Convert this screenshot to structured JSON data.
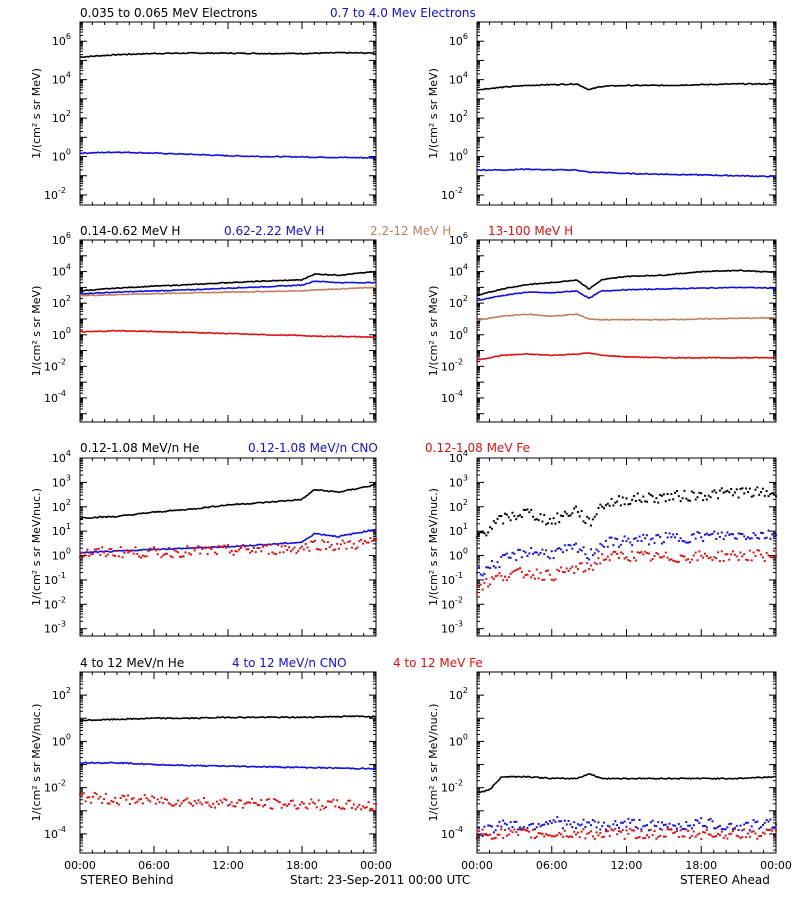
{
  "footer": {
    "left": "STEREO Behind",
    "center": "Start: 23-Sep-2011 00:00 UTC",
    "right": "STEREO Ahead"
  },
  "x_tick_labels": [
    "00:00",
    "06:00",
    "12:00",
    "18:00",
    "00:00"
  ],
  "colors": {
    "black": "#000000",
    "blue": "#1010e0",
    "tan": "#c08060",
    "red": "#e01010"
  },
  "rows": [
    {
      "ylabel": "1/(cm² s sr MeV)",
      "legend": [
        {
          "text": "0.035 to 0.065 MeV Electrons",
          "color": "black"
        },
        {
          "text": "0.7 to 4.0 Mev Electrons",
          "color": "blue"
        }
      ]
    },
    {
      "ylabel": "1/(cm² s sr MeV)",
      "legend": [
        {
          "text": "0.14-0.62 MeV H",
          "color": "black"
        },
        {
          "text": "0.62-2.22 MeV H",
          "color": "blue"
        },
        {
          "text": "2.2-12 MeV H",
          "color": "tan"
        },
        {
          "text": "13-100 MeV H",
          "color": "red"
        }
      ]
    },
    {
      "ylabel": "1/(cm² s sr MeV/nuc.)",
      "legend": [
        {
          "text": "0.12-1.08 MeV/n He",
          "color": "black"
        },
        {
          "text": "0.12-1.08 MeV/n CNO",
          "color": "blue"
        },
        {
          "text": "0.12-1.08 MeV Fe",
          "color": "red"
        }
      ]
    },
    {
      "ylabel": "1/(cm² s sr MeV/nuc.)",
      "legend": [
        {
          "text": "4 to 12 MeV/n He",
          "color": "black"
        },
        {
          "text": "4 to 12 MeV/n CNO",
          "color": "blue"
        },
        {
          "text": "4 to 12 MeV Fe",
          "color": "red"
        }
      ]
    }
  ],
  "chart_data": [
    {
      "type": "line",
      "panel": "Behind",
      "row": 0,
      "yscale": "log",
      "ylim": [
        0.003,
        10000000
      ],
      "yticks": [
        {
          "v": 0.01,
          "b": "10",
          "e": "-2"
        },
        {
          "v": 1,
          "b": "10",
          "e": "0"
        },
        {
          "v": 100,
          "b": "10",
          "e": "2"
        },
        {
          "v": 10000,
          "b": "10",
          "e": "4"
        },
        {
          "v": 1000000,
          "b": "10",
          "e": "6"
        }
      ],
      "x": [
        0,
        3,
        6,
        9,
        12,
        15,
        18,
        21,
        24
      ],
      "series": [
        {
          "color": "black",
          "style": "line",
          "values": [
            150000,
            200000,
            230000,
            240000,
            240000,
            230000,
            230000,
            250000,
            240000
          ]
        },
        {
          "color": "blue",
          "style": "line",
          "values": [
            1.5,
            1.7,
            1.5,
            1.3,
            1.1,
            1.0,
            0.95,
            0.9,
            0.85
          ]
        }
      ]
    },
    {
      "type": "line",
      "panel": "Ahead",
      "row": 0,
      "yscale": "log",
      "ylim": [
        0.003,
        10000000
      ],
      "yticks": [
        {
          "v": 0.01,
          "b": "10",
          "e": "-2"
        },
        {
          "v": 1,
          "b": "10",
          "e": "0"
        },
        {
          "v": 100,
          "b": "10",
          "e": "2"
        },
        {
          "v": 10000,
          "b": "10",
          "e": "4"
        },
        {
          "v": 1000000,
          "b": "10",
          "e": "6"
        }
      ],
      "x": [
        0,
        2,
        4,
        6,
        8,
        9,
        10,
        12,
        15,
        18,
        21,
        24
      ],
      "series": [
        {
          "color": "black",
          "style": "line",
          "values": [
            3000,
            4000,
            5000,
            5500,
            6000,
            3000,
            4500,
            5000,
            5000,
            5500,
            6000,
            6000
          ]
        },
        {
          "color": "blue",
          "style": "line",
          "values": [
            0.2,
            0.2,
            0.22,
            0.2,
            0.2,
            0.15,
            0.15,
            0.13,
            0.12,
            0.11,
            0.1,
            0.09
          ]
        }
      ]
    },
    {
      "type": "line",
      "panel": "Behind",
      "row": 1,
      "yscale": "log",
      "ylim": [
        3e-06,
        1000000
      ],
      "yticks": [
        {
          "v": 0.0001,
          "b": "10",
          "e": "-4"
        },
        {
          "v": 0.01,
          "b": "10",
          "e": "-2"
        },
        {
          "v": 1,
          "b": "10",
          "e": "0"
        },
        {
          "v": 100,
          "b": "10",
          "e": "2"
        },
        {
          "v": 10000,
          "b": "10",
          "e": "4"
        },
        {
          "v": 1000000,
          "b": "10",
          "e": "6"
        }
      ],
      "x": [
        0,
        3,
        6,
        9,
        12,
        15,
        18,
        19,
        21,
        24
      ],
      "series": [
        {
          "color": "black",
          "style": "line",
          "values": [
            600,
            900,
            1200,
            1500,
            2000,
            2500,
            3000,
            7000,
            6000,
            10000
          ]
        },
        {
          "color": "blue",
          "style": "line",
          "values": [
            400,
            500,
            600,
            700,
            900,
            1100,
            1400,
            2500,
            2000,
            2000
          ]
        },
        {
          "color": "tan",
          "style": "line",
          "values": [
            300,
            350,
            400,
            450,
            500,
            550,
            600,
            700,
            800,
            1000
          ]
        },
        {
          "color": "red",
          "style": "line",
          "values": [
            1.5,
            1.8,
            1.6,
            1.4,
            1.2,
            1.0,
            0.9,
            0.8,
            0.8,
            0.7
          ]
        }
      ]
    },
    {
      "type": "line",
      "panel": "Ahead",
      "row": 1,
      "yscale": "log",
      "ylim": [
        3e-06,
        1000000
      ],
      "yticks": [
        {
          "v": 0.0001,
          "b": "10",
          "e": "-4"
        },
        {
          "v": 0.01,
          "b": "10",
          "e": "-2"
        },
        {
          "v": 1,
          "b": "10",
          "e": "0"
        },
        {
          "v": 100,
          "b": "10",
          "e": "2"
        },
        {
          "v": 10000,
          "b": "10",
          "e": "4"
        },
        {
          "v": 1000000,
          "b": "10",
          "e": "6"
        }
      ],
      "x": [
        0,
        2,
        4,
        6,
        8,
        9,
        10,
        12,
        15,
        18,
        21,
        24
      ],
      "series": [
        {
          "color": "black",
          "style": "line",
          "values": [
            300,
            800,
            1500,
            2000,
            3000,
            800,
            3000,
            5000,
            6000,
            10000,
            12000,
            9000
          ]
        },
        {
          "color": "blue",
          "style": "line",
          "values": [
            150,
            300,
            500,
            450,
            600,
            200,
            600,
            700,
            800,
            900,
            1000,
            900
          ]
        },
        {
          "color": "tan",
          "style": "line",
          "values": [
            8,
            15,
            20,
            15,
            20,
            10,
            9,
            9,
            9,
            10,
            11,
            12
          ]
        },
        {
          "color": "red",
          "style": "line",
          "values": [
            0.025,
            0.05,
            0.06,
            0.05,
            0.06,
            0.07,
            0.05,
            0.04,
            0.035,
            0.035,
            0.035,
            0.035
          ]
        }
      ]
    },
    {
      "type": "line",
      "panel": "Behind",
      "row": 2,
      "yscale": "log",
      "ylim": [
        0.0005,
        10000
      ],
      "yticks": [
        {
          "v": 0.001,
          "b": "10",
          "e": "-3"
        },
        {
          "v": 0.01,
          "b": "10",
          "e": "-2"
        },
        {
          "v": 0.1,
          "b": "10",
          "e": "-1"
        },
        {
          "v": 1,
          "b": "10",
          "e": "0"
        },
        {
          "v": 10,
          "b": "10",
          "e": "1"
        },
        {
          "v": 100,
          "b": "10",
          "e": "2"
        },
        {
          "v": 1000,
          "b": "10",
          "e": "3"
        },
        {
          "v": 10000,
          "b": "10",
          "e": "4"
        }
      ],
      "x": [
        0,
        3,
        6,
        9,
        12,
        15,
        18,
        19,
        21,
        24
      ],
      "series": [
        {
          "color": "black",
          "style": "line",
          "values": [
            35,
            40,
            60,
            80,
            120,
            150,
            200,
            500,
            400,
            800
          ]
        },
        {
          "color": "blue",
          "style": "line",
          "values": [
            1.3,
            1.5,
            1.8,
            2.0,
            2.3,
            2.8,
            3.5,
            8.0,
            6.0,
            12.0
          ]
        },
        {
          "color": "red",
          "style": "dots",
          "values": [
            1.2,
            1.4,
            1.3,
            1.5,
            1.6,
            1.8,
            2.0,
            3.0,
            2.5,
            3.5
          ]
        }
      ]
    },
    {
      "type": "line",
      "panel": "Ahead",
      "row": 2,
      "yscale": "log",
      "ylim": [
        0.0005,
        10000
      ],
      "yticks": [
        {
          "v": 0.001,
          "b": "10",
          "e": "-3"
        },
        {
          "v": 0.01,
          "b": "10",
          "e": "-2"
        },
        {
          "v": 0.1,
          "b": "10",
          "e": "-1"
        },
        {
          "v": 1,
          "b": "10",
          "e": "0"
        },
        {
          "v": 10,
          "b": "10",
          "e": "1"
        },
        {
          "v": 100,
          "b": "10",
          "e": "2"
        },
        {
          "v": 1000,
          "b": "10",
          "e": "3"
        },
        {
          "v": 10000,
          "b": "10",
          "e": "4"
        }
      ],
      "x": [
        0,
        2,
        4,
        6,
        8,
        9,
        10,
        12,
        15,
        18,
        21,
        24
      ],
      "series": [
        {
          "color": "black",
          "style": "dots",
          "values": [
            6,
            30,
            60,
            25,
            80,
            20,
            120,
            200,
            250,
            300,
            400,
            350
          ]
        },
        {
          "color": "blue",
          "style": "dots",
          "values": [
            0.2,
            0.6,
            1.5,
            1.2,
            2.0,
            1.0,
            3.0,
            4.0,
            5.0,
            6.0,
            7.0,
            7.0
          ]
        },
        {
          "color": "red",
          "style": "dots",
          "values": [
            0.05,
            0.15,
            0.2,
            0.15,
            0.3,
            0.3,
            0.8,
            1.0,
            0.8,
            0.9,
            1.0,
            1.0
          ]
        }
      ]
    },
    {
      "type": "line",
      "panel": "Behind",
      "row": 3,
      "yscale": "log",
      "ylim": [
        1.5e-05,
        1000
      ],
      "yticks": [
        {
          "v": 0.0001,
          "b": "10",
          "e": "-4"
        },
        {
          "v": 0.01,
          "b": "10",
          "e": "-2"
        },
        {
          "v": 1,
          "b": "10",
          "e": "0"
        },
        {
          "v": 100,
          "b": "10",
          "e": "2"
        }
      ],
      "x": [
        0,
        3,
        6,
        9,
        12,
        15,
        18,
        21,
        24
      ],
      "series": [
        {
          "color": "black",
          "style": "line",
          "values": [
            8,
            9,
            10,
            10,
            11,
            11,
            11,
            12,
            12
          ]
        },
        {
          "color": "blue",
          "style": "line",
          "values": [
            0.12,
            0.12,
            0.1,
            0.09,
            0.085,
            0.08,
            0.075,
            0.07,
            0.065
          ]
        },
        {
          "color": "red",
          "style": "dots",
          "values": [
            0.004,
            0.003,
            0.0028,
            0.0025,
            0.0022,
            0.002,
            0.0019,
            0.0018,
            0.0015
          ]
        }
      ]
    },
    {
      "type": "line",
      "panel": "Ahead",
      "row": 3,
      "yscale": "log",
      "ylim": [
        1.5e-05,
        1000
      ],
      "yticks": [
        {
          "v": 0.0001,
          "b": "10",
          "e": "-4"
        },
        {
          "v": 0.01,
          "b": "10",
          "e": "-2"
        },
        {
          "v": 1,
          "b": "10",
          "e": "0"
        },
        {
          "v": 100,
          "b": "10",
          "e": "2"
        }
      ],
      "x": [
        0,
        1,
        2,
        4,
        6,
        8,
        9,
        10,
        12,
        15,
        18,
        21,
        24
      ],
      "series": [
        {
          "color": "black",
          "style": "line",
          "values": [
            0.006,
            0.008,
            0.03,
            0.03,
            0.025,
            0.025,
            0.04,
            0.025,
            0.025,
            0.025,
            0.025,
            0.025,
            0.03
          ]
        },
        {
          "color": "blue",
          "style": "dots",
          "values": [
            0.0001,
            0.00015,
            0.0003,
            0.0002,
            0.0004,
            0.0002,
            0.0003,
            0.0002,
            0.0003,
            0.0002,
            0.0003,
            0.0002,
            0.0003
          ]
        },
        {
          "color": "red",
          "style": "dots",
          "values": [
            0.0001,
            0.0001,
            0.0001,
            0.0001,
            0.0001,
            0.0001,
            0.0001,
            0.0001,
            0.0001,
            0.0001,
            0.0001,
            0.0001,
            0.0001
          ]
        }
      ]
    }
  ]
}
